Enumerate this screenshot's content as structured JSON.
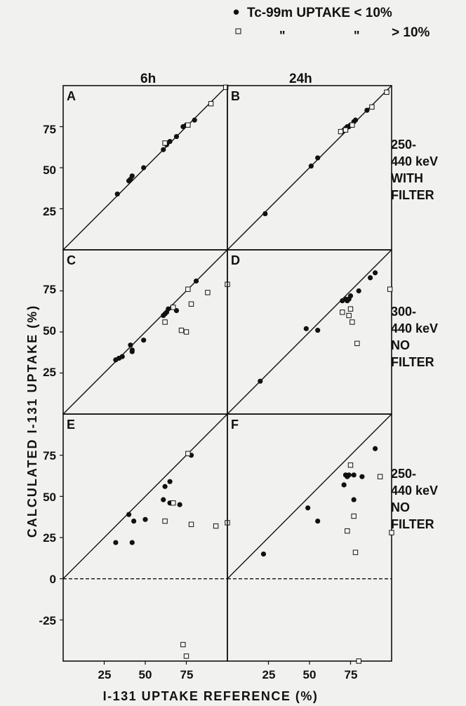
{
  "figure": {
    "legend": {
      "filled": {
        "symbol": "•",
        "label": "Tc-99m UPTAKE < 10%"
      },
      "open": {
        "ditto1": "\"",
        "ditto2": "\"",
        "label": "> 10%"
      }
    },
    "col_labels": [
      "6h",
      "24h"
    ],
    "row_labels": [
      [
        "250-",
        "440 keV",
        "WITH",
        "FILTER"
      ],
      [
        "300-",
        "440 keV",
        "NO",
        "FILTER"
      ],
      [
        "250-",
        "440 keV",
        "NO",
        "FILTER"
      ]
    ],
    "ylabel": "CALCULATED I-131 UPTAKE (%)",
    "xlabel": "I-131 UPTAKE REFERENCE (%)",
    "x_ticks": [
      25,
      50,
      75
    ],
    "y_ticks_rows12": [
      25,
      50,
      75
    ],
    "y_ticks_row3": [
      -25,
      0,
      25,
      50,
      75
    ]
  },
  "chart_data": [
    {
      "type": "scatter",
      "panel": "A",
      "xlim": [
        0,
        100
      ],
      "ylim": [
        0,
        100
      ],
      "identity_line": true,
      "series": [
        {
          "marker": "filled",
          "points": [
            [
              33,
              34
            ],
            [
              40,
              42
            ],
            [
              41,
              43
            ],
            [
              42,
              45
            ],
            [
              49,
              50
            ],
            [
              61,
              61
            ],
            [
              63,
              64
            ],
            [
              65,
              66
            ],
            [
              69,
              69
            ],
            [
              73,
              75
            ],
            [
              75,
              76
            ],
            [
              80,
              79
            ]
          ]
        },
        {
          "marker": "open",
          "points": [
            [
              62,
              65
            ],
            [
              76,
              76
            ],
            [
              90,
              89
            ],
            [
              99,
              99
            ]
          ]
        }
      ]
    },
    {
      "type": "scatter",
      "panel": "B",
      "xlim": [
        0,
        100
      ],
      "ylim": [
        0,
        100
      ],
      "identity_line": true,
      "series": [
        {
          "marker": "filled",
          "points": [
            [
              23,
              22
            ],
            [
              51,
              51
            ],
            [
              55,
              56
            ],
            [
              70,
              72
            ],
            [
              71,
              73
            ],
            [
              72,
              74
            ],
            [
              73,
              75
            ],
            [
              74,
              75
            ],
            [
              75,
              76
            ],
            [
              77,
              78
            ],
            [
              78,
              79
            ],
            [
              85,
              85
            ]
          ]
        },
        {
          "marker": "open",
          "points": [
            [
              69,
              72
            ],
            [
              72,
              73
            ],
            [
              76,
              76
            ],
            [
              88,
              87
            ],
            [
              97,
              96
            ]
          ]
        }
      ]
    },
    {
      "type": "scatter",
      "panel": "C",
      "xlim": [
        0,
        100
      ],
      "ylim": [
        0,
        100
      ],
      "identity_line": true,
      "series": [
        {
          "marker": "filled",
          "points": [
            [
              32,
              33
            ],
            [
              34,
              34
            ],
            [
              36,
              35
            ],
            [
              41,
              42
            ],
            [
              42,
              39
            ],
            [
              42,
              38
            ],
            [
              49,
              45
            ],
            [
              61,
              60
            ],
            [
              62,
              61
            ],
            [
              63,
              62
            ],
            [
              64,
              64
            ],
            [
              69,
              63
            ],
            [
              81,
              81
            ]
          ]
        },
        {
          "marker": "open",
          "points": [
            [
              62,
              56
            ],
            [
              67,
              65
            ],
            [
              72,
              51
            ],
            [
              75,
              50
            ],
            [
              76,
              76
            ],
            [
              78,
              67
            ],
            [
              88,
              74
            ],
            [
              100,
              79
            ]
          ]
        }
      ]
    },
    {
      "type": "scatter",
      "panel": "D",
      "xlim": [
        0,
        100
      ],
      "ylim": [
        0,
        100
      ],
      "identity_line": true,
      "series": [
        {
          "marker": "filled",
          "points": [
            [
              20,
              20
            ],
            [
              48,
              52
            ],
            [
              55,
              51
            ],
            [
              70,
              69
            ],
            [
              72,
              70
            ],
            [
              73,
              69
            ],
            [
              74,
              70
            ],
            [
              75,
              72
            ],
            [
              80,
              75
            ],
            [
              87,
              83
            ],
            [
              90,
              86
            ]
          ]
        },
        {
          "marker": "open",
          "points": [
            [
              70,
              62
            ],
            [
              74,
              60
            ],
            [
              75,
              64
            ],
            [
              76,
              56
            ],
            [
              79,
              43
            ],
            [
              99,
              76
            ]
          ]
        }
      ]
    },
    {
      "type": "scatter",
      "panel": "E",
      "xlim": [
        0,
        100
      ],
      "ylim": [
        -50,
        100
      ],
      "identity_line": true,
      "zero_line": "dashed",
      "series": [
        {
          "marker": "filled",
          "points": [
            [
              32,
              22
            ],
            [
              42,
              22
            ],
            [
              40,
              39
            ],
            [
              43,
              35
            ],
            [
              50,
              36
            ],
            [
              61,
              48
            ],
            [
              62,
              56
            ],
            [
              65,
              59
            ],
            [
              65,
              46
            ],
            [
              71,
              45
            ],
            [
              78,
              75
            ]
          ]
        },
        {
          "marker": "open",
          "points": [
            [
              62,
              35
            ],
            [
              67,
              46
            ],
            [
              76,
              76
            ],
            [
              78,
              33
            ],
            [
              93,
              32
            ],
            [
              100,
              34
            ],
            [
              73,
              -40
            ],
            [
              75,
              -47
            ]
          ]
        }
      ]
    },
    {
      "type": "scatter",
      "panel": "F",
      "xlim": [
        0,
        100
      ],
      "ylim": [
        -50,
        100
      ],
      "identity_line": true,
      "zero_line": "dashed",
      "series": [
        {
          "marker": "filled",
          "points": [
            [
              22,
              15
            ],
            [
              49,
              43
            ],
            [
              55,
              35
            ],
            [
              71,
              57
            ],
            [
              72,
              63
            ],
            [
              73,
              62
            ],
            [
              74,
              63
            ],
            [
              77,
              63
            ],
            [
              77,
              48
            ],
            [
              82,
              62
            ],
            [
              90,
              79
            ]
          ]
        },
        {
          "marker": "open",
          "points": [
            [
              73,
              29
            ],
            [
              75,
              69
            ],
            [
              77,
              38
            ],
            [
              78,
              16
            ],
            [
              93,
              62
            ],
            [
              100,
              28
            ],
            [
              80,
              -50
            ]
          ]
        }
      ]
    }
  ]
}
